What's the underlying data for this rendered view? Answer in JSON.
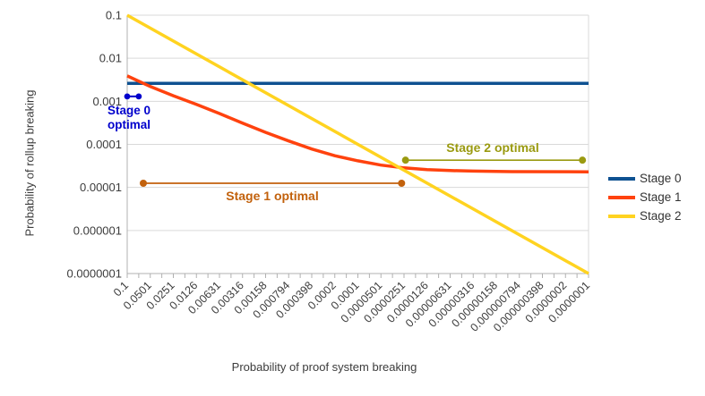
{
  "chart_data": {
    "type": "line",
    "title": "",
    "xlabel": "Probability of proof system breaking",
    "ylabel": "Probability of rollup breaking",
    "x_scale": "log",
    "y_scale": "log",
    "x_range": [
      0.1,
      1e-07
    ],
    "y_range": [
      0.1,
      1e-07
    ],
    "grid": "horizontal",
    "legend_position": "right",
    "colors": {
      "gridline": "#d9d9d9",
      "axis": "#b0b0b0",
      "tick_text": "#3c3c3c"
    },
    "y_tick_labels": [
      "0.1",
      "0.01",
      "0.001",
      "0.0001",
      "0.00001",
      "0.000001",
      "0.0000001"
    ],
    "x_tick_labels": [
      "0.1",
      "0.0501",
      "0.0251",
      "0.0126",
      "0.00631",
      "0.00316",
      "0.00158",
      "0.000794",
      "0.000398",
      "0.0002",
      "0.0001",
      "0.0000501",
      "0.0000251",
      "0.0000126",
      "0.00000631",
      "0.00000316",
      "0.00000158",
      "0.000000794",
      "0.000000398",
      "0.0000002",
      "0.0000001"
    ],
    "series": [
      {
        "name": "Stage 0",
        "color": "#0e5191",
        "width": 3.5,
        "points": [
          [
            0.1,
            0.0026
          ],
          [
            1e-07,
            0.0026
          ]
        ]
      },
      {
        "name": "Stage 1",
        "color": "#ff420e",
        "width": 3.5,
        "points": [
          [
            0.1,
            0.0039
          ],
          [
            0.0501,
            0.0022
          ],
          [
            0.0251,
            0.00135
          ],
          [
            0.0126,
            0.00085
          ],
          [
            0.00631,
            0.00052
          ],
          [
            0.00316,
            0.00031
          ],
          [
            0.00158,
            0.00019
          ],
          [
            0.000794,
            0.00012
          ],
          [
            0.000398,
            7.8e-05
          ],
          [
            0.0002,
            5.45e-05
          ],
          [
            0.0001,
            4.15e-05
          ],
          [
            5.01e-05,
            3.3e-05
          ],
          [
            2.51e-05,
            2.85e-05
          ],
          [
            1.26e-05,
            2.6e-05
          ],
          [
            6.31e-06,
            2.47e-05
          ],
          [
            3.16e-06,
            2.4e-05
          ],
          [
            1e-06,
            2.33e-05
          ],
          [
            1e-07,
            2.3e-05
          ]
        ]
      },
      {
        "name": "Stage 2",
        "color": "#ffd320",
        "width": 3.5,
        "points": [
          [
            0.1,
            0.1
          ],
          [
            1e-07,
            1e-07
          ]
        ]
      }
    ],
    "annotations": [
      {
        "label": "Stage 0 optimal",
        "color": "#0000cc",
        "x_from": 0.1,
        "x_to": 0.0708,
        "y": 0.0013,
        "dot_r": 3.4,
        "line_width": 2
      },
      {
        "label": "Stage 1 optimal",
        "color": "#c2610c",
        "x_from": 0.0617,
        "x_to": 2.7e-05,
        "y": 1.25e-05,
        "dot_r": 4,
        "line_width": 1.8
      },
      {
        "label": "Stage 2 optimal",
        "color": "#9a9a10",
        "x_from": 2.4e-05,
        "x_to": 1.2e-07,
        "y": 4.3e-05,
        "dot_r": 4,
        "line_width": 1.6
      }
    ]
  }
}
